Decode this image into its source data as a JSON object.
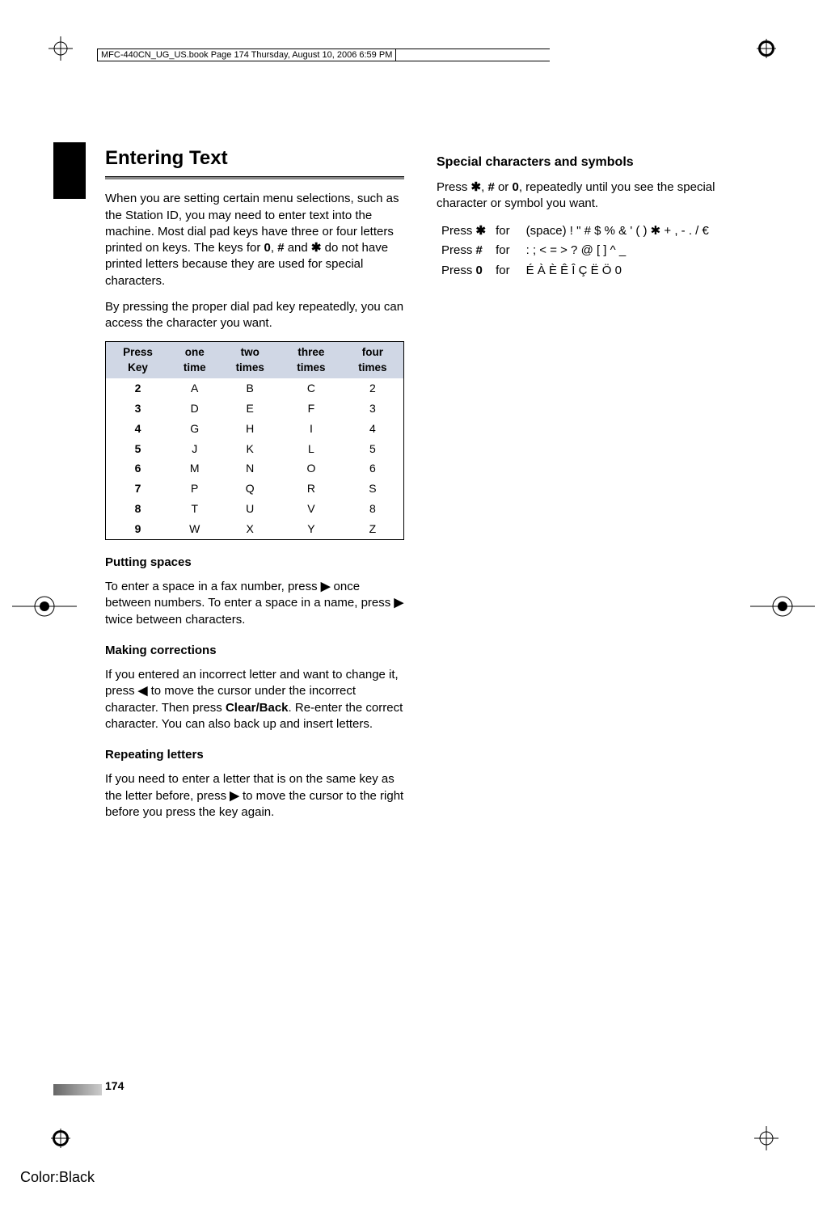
{
  "header": {
    "text": "MFC-440CN_UG_US.book  Page 174  Thursday, August 10, 2006  6:59 PM"
  },
  "left": {
    "title": "Entering Text",
    "intro1": "When you are setting certain menu selections, such as the Station ID, you may need to enter text into the machine. Most dial pad keys have three or four letters printed on keys. The keys for ",
    "intro1_keys_a": "0",
    "intro1_mid1": ", ",
    "intro1_keys_b": "#",
    "intro1_mid2": " and ",
    "intro1_keys_c": "✱",
    "intro1_end": " do not have printed letters because they are used for special characters.",
    "intro2": "By pressing the proper dial pad key repeatedly, you can access the character you want.",
    "table": {
      "headers": [
        "Press Key",
        "one time",
        "two times",
        "three times",
        "four times"
      ],
      "rows": [
        [
          "2",
          "A",
          "B",
          "C",
          "2"
        ],
        [
          "3",
          "D",
          "E",
          "F",
          "3"
        ],
        [
          "4",
          "G",
          "H",
          "I",
          "4"
        ],
        [
          "5",
          "J",
          "K",
          "L",
          "5"
        ],
        [
          "6",
          "M",
          "N",
          "O",
          "6"
        ],
        [
          "7",
          "P",
          "Q",
          "R",
          "S"
        ],
        [
          "8",
          "T",
          "U",
          "V",
          "8"
        ],
        [
          "9",
          "W",
          "X",
          "Y",
          "Z"
        ]
      ]
    },
    "spaces_h": "Putting spaces",
    "spaces_p1": "To enter a space in a fax number, press ",
    "spaces_arrow1": "▶",
    "spaces_p2": " once between numbers. To enter a space in a name, press ",
    "spaces_arrow2": "▶",
    "spaces_p3": " twice between characters.",
    "corr_h": "Making corrections",
    "corr_p1": "If you entered an incorrect letter and want to change it, press ",
    "corr_arrow": "◀",
    "corr_p2": " to move the cursor under the incorrect character. Then press ",
    "corr_bold": "Clear/Back",
    "corr_p3": ". Re-enter the correct character. You can also back up and insert letters.",
    "rep_h": "Repeating letters",
    "rep_p1": "If you need to enter a letter that is on the same key as the letter before, press ",
    "rep_arrow": "▶",
    "rep_p2": " to move the cursor to the right before you press the key again."
  },
  "right": {
    "title": "Special characters and symbols",
    "intro_a": "Press ",
    "intro_star": "✱",
    "intro_b": ", ",
    "intro_hash": "#",
    "intro_c": " or ",
    "intro_zero": "0",
    "intro_d": ", repeatedly until you see the special character or symbol you want.",
    "rows": [
      {
        "press": "Press ",
        "key": "✱",
        "for": "for",
        "chars": "(space) ! \" # $ % & ' ( ) ✱ + , - . / €"
      },
      {
        "press": "Press ",
        "key": "#",
        "for": "for",
        "chars": ": ; < = > ? @ [ ] ^ _"
      },
      {
        "press": "Press ",
        "key": "0",
        "for": "for",
        "chars": "É À È Ê Î Ç Ë Ö 0"
      }
    ]
  },
  "pageNumber": "174",
  "colorLabel": "Color:Black"
}
